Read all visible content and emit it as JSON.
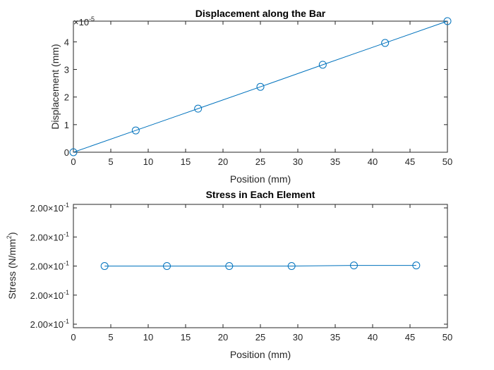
{
  "chart_data": [
    {
      "type": "line",
      "title": "Displacement along the Bar",
      "xlabel": "Position (mm)",
      "ylabel": "Displacement (mm)",
      "exponent_label": {
        "base": "×10",
        "power": "-5"
      },
      "xlim": [
        0,
        50
      ],
      "ylim": [
        0,
        4.75
      ],
      "x_ticks": [
        "0",
        "5",
        "10",
        "15",
        "20",
        "25",
        "30",
        "35",
        "40",
        "45",
        "50"
      ],
      "y_ticks": [
        "0",
        "1",
        "2",
        "3",
        "4"
      ],
      "grid": false,
      "marker": "circle",
      "color": "#0072BD",
      "series": [
        {
          "x": [
            0,
            8.333,
            16.667,
            25,
            33.333,
            41.667,
            50
          ],
          "values": [
            0,
            0.79,
            1.58,
            2.37,
            3.17,
            3.96,
            4.75
          ]
        }
      ]
    },
    {
      "type": "line",
      "title": "Stress in Each Element",
      "xlabel": "Position (mm)",
      "ylabel": {
        "text": "Stress (N/mm",
        "power": "2",
        "close": ")"
      },
      "xlim": [
        0,
        50
      ],
      "ylim": [
        -2,
        2
      ],
      "x_ticks": [
        "0",
        "5",
        "10",
        "15",
        "20",
        "25",
        "30",
        "35",
        "40",
        "45",
        "50"
      ],
      "y_ticks": [
        {
          "mantissa": "2.00",
          "base": "×10",
          "power": "-1"
        },
        {
          "mantissa": "2.00",
          "base": "×10",
          "power": "-1"
        },
        {
          "mantissa": "2.00",
          "base": "×10",
          "power": "-1"
        },
        {
          "mantissa": "2.00",
          "base": "×10",
          "power": "-1"
        },
        {
          "mantissa": "2.00",
          "base": "×10",
          "power": "-1"
        }
      ],
      "grid": false,
      "marker": "circle",
      "color": "#0072BD",
      "series": [
        {
          "x": [
            4.167,
            12.5,
            20.833,
            29.167,
            37.5,
            45.833
          ],
          "values": [
            0,
            0,
            0,
            0,
            0.02,
            0.02
          ]
        }
      ]
    }
  ]
}
